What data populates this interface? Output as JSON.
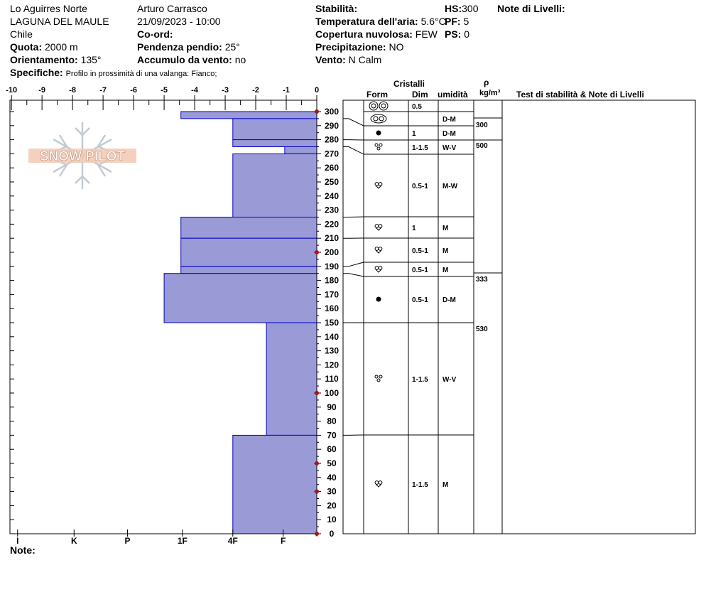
{
  "header": {
    "location": "Lo Aguirres Norte",
    "region": "LAGUNA DEL MAULE",
    "country": "Chile",
    "elevation_label": "Quota:",
    "elevation_value": "2000 m",
    "aspect_label": "Orientamento:",
    "aspect_value": "135°",
    "specs_label": "Specifiche:",
    "specs_value": "Profilo in prossimità di una valanga: Fianco;",
    "observer": "Arturo Carrasco",
    "datetime": "21/09/2023 - 10:00",
    "coord_label": "Co-ord:",
    "slope_label": "Pendenza pendio:",
    "slope_value": "25°",
    "wind_loading_label": "Accumulo da vento:",
    "wind_loading_value": "no",
    "stability_label": "Stabilità:",
    "air_temp_label": "Temperatura dell'aria:",
    "air_temp_value": "5.6°C",
    "sky_label": "Copertura nuvolosa:",
    "sky_value": "FEW",
    "precip_label": "Precipitazione:",
    "precip_value": "NO",
    "wind_label": "Vento:",
    "wind_value": "N Calm",
    "hs_label": "HS:",
    "hs_value": "300",
    "pf_label": "PF:",
    "pf_value": "5",
    "ps_label": "PS:",
    "ps_value": "0",
    "layer_notes_label": "Note di Livelli:",
    "notes_label": "Note:"
  },
  "logo_text": "SNOW PILOT",
  "columns": {
    "crystals": "Cristalli",
    "form": "Form",
    "dim": "Dim",
    "humidity": "umidità",
    "rho": "ρ",
    "density_unit": "kg/m³",
    "stability_tests": "Test di stabilità & Note di Livelli"
  },
  "chart_data": {
    "type": "bar",
    "orientation": "horizontal",
    "title": "",
    "xlabel": "",
    "ylabel": "",
    "x_ticks": [
      -10,
      -9,
      -8,
      -7,
      -6,
      -5,
      -4,
      -3,
      -2,
      -1,
      0
    ],
    "xlim": [
      -10,
      0
    ],
    "hardness_ticks": [
      "I",
      "K",
      "P",
      "1F",
      "4F",
      "F"
    ],
    "ylim": [
      0,
      300
    ],
    "y_ticks": [
      0,
      10,
      20,
      30,
      40,
      50,
      60,
      70,
      80,
      90,
      100,
      110,
      120,
      130,
      140,
      150,
      160,
      170,
      180,
      190,
      200,
      210,
      220,
      230,
      240,
      250,
      260,
      270,
      280,
      290,
      300
    ],
    "temperature_points": [
      0,
      30,
      50,
      100,
      200,
      300
    ],
    "bar_color": "#9a9ad6",
    "bar_edge_color": "#0000c8",
    "temp_marker_color": "#a01818",
    "layers": [
      {
        "bottom": 295,
        "top": 300,
        "hardness": -4.45,
        "form": "DF2",
        "dim": "0.5",
        "humidity": "",
        "density": ""
      },
      {
        "bottom": 280,
        "top": 295,
        "hardness": -2.75,
        "form": "DF",
        "dim": "",
        "humidity": "D-M",
        "density": "300"
      },
      {
        "bottom": 275,
        "top": 280,
        "hardness": -2.75,
        "form": "MF",
        "dim": "1",
        "humidity": "D-M",
        "density": ""
      },
      {
        "bottom": 270,
        "top": 275,
        "hardness": -1.05,
        "form": "RG",
        "dim": "1-1.5",
        "humidity": "W-V",
        "density": "500"
      },
      {
        "bottom": 225,
        "top": 270,
        "hardness": -2.75,
        "form": "FC",
        "dim": "0.5-1",
        "humidity": "M-W",
        "density": ""
      },
      {
        "bottom": 210,
        "top": 225,
        "hardness": -4.45,
        "form": "FC",
        "dim": "1",
        "humidity": "M",
        "density": ""
      },
      {
        "bottom": 190,
        "top": 210,
        "hardness": -4.45,
        "form": "FC",
        "dim": "0.5-1",
        "humidity": "M",
        "density": ""
      },
      {
        "bottom": 185,
        "top": 190,
        "hardness": -4.45,
        "form": "FC",
        "dim": "0.5-1",
        "humidity": "M",
        "density": ""
      },
      {
        "bottom": 150,
        "top": 185,
        "hardness": -5.0,
        "form": "MF",
        "dim": "0.5-1",
        "humidity": "D-M",
        "density": "333"
      },
      {
        "bottom": 70,
        "top": 150,
        "hardness": -1.65,
        "form": "RG",
        "dim": "1-1.5",
        "humidity": "W-V",
        "density": "530"
      },
      {
        "bottom": 0,
        "top": 70,
        "hardness": -2.75,
        "form": "FC",
        "dim": "1-1.5",
        "humidity": "M",
        "density": ""
      }
    ]
  }
}
